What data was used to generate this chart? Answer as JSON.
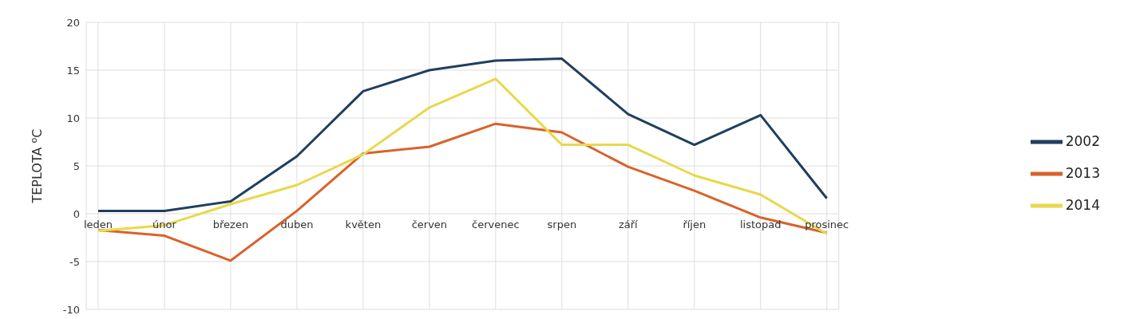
{
  "chart_data": {
    "type": "line",
    "ylabel": "TEPLOTA $^{o}$C",
    "categories": [
      "leden",
      "únor",
      "březen",
      "duben",
      "květen",
      "červen",
      "červenec",
      "srpen",
      "září",
      "říjen",
      "listopad",
      "prosinec"
    ],
    "series": [
      {
        "name": "2002",
        "color": "#1f3f5f",
        "values": [
          0.3,
          0.3,
          1.3,
          6,
          12.8,
          15,
          16,
          16.2,
          10.4,
          7.2,
          10.3,
          1.6
        ]
      },
      {
        "name": "2013",
        "color": "#d9622b",
        "values": [
          -1.7,
          -2.3,
          -4.9,
          0.3,
          6.3,
          7.0,
          9.4,
          8.5,
          4.9,
          2.4,
          -0.4,
          -2.0
        ]
      },
      {
        "name": "2014",
        "color": "#e8d84a",
        "values": [
          -1.8,
          -1.2,
          1.0,
          3.0,
          6.2,
          11.1,
          14.1,
          7.2,
          7.2,
          4.0,
          2.0,
          -2.1
        ]
      }
    ],
    "ylim": [
      -10,
      20
    ],
    "yticks": [
      -10,
      -5,
      0,
      5,
      10,
      15,
      20
    ],
    "grid": true,
    "legend": "right",
    "marker": "none",
    "line_style": "solid"
  }
}
